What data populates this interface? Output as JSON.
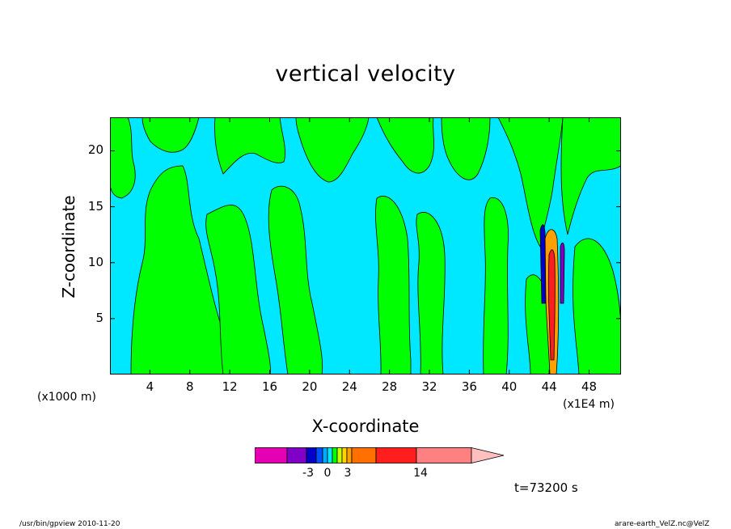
{
  "chart_data": {
    "type": "heatmap",
    "title": "vertical velocity",
    "xlabel": "X-coordinate",
    "ylabel": "Z-coordinate",
    "x_unit_left": "(x1000 m)",
    "x_unit_right": "(x1E4 m)",
    "x_ticks": [
      "4",
      "8",
      "12",
      "16",
      "20",
      "24",
      "28",
      "32",
      "36",
      "40",
      "44",
      "48"
    ],
    "y_ticks": [
      "5",
      "10",
      "15",
      "20"
    ],
    "xlim": [
      0,
      51.2
    ],
    "ylim": [
      0,
      23
    ],
    "fill_colors": {
      "negative_weak": "#00e8ff",
      "positive_weak": "#00ff00"
    },
    "colorbar": {
      "colors": [
        "#e600b4",
        "#8000c8",
        "#0000c8",
        "#0050ff",
        "#00aaff",
        "#00e8ff",
        "#00ff00",
        "#c8ff00",
        "#ffd200",
        "#ffa000",
        "#ff7000",
        "#ff1e1e",
        "#ff8080",
        "#ffbfbf"
      ],
      "tick_labels": [
        "-3",
        "0",
        "3",
        "14"
      ]
    },
    "time_label": "t=73200 s"
  },
  "footer": {
    "left": "/usr/bin/gpview   2010-11-20",
    "right": "arare-earth_VelZ.nc@VelZ"
  }
}
